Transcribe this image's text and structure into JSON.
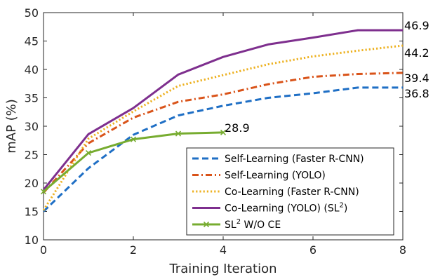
{
  "chart_data": {
    "type": "line",
    "title": "",
    "xlabel": "Training Iteration",
    "ylabel": "mAP (%)",
    "xlim": [
      0,
      8
    ],
    "ylim": [
      10,
      50
    ],
    "xticks": [
      0,
      2,
      4,
      6,
      8
    ],
    "yticks": [
      10,
      15,
      20,
      25,
      30,
      35,
      40,
      45,
      50
    ],
    "grid": false,
    "legend_position": "bottom-right",
    "series": [
      {
        "name": "Self-Learning (Faster R-CNN)",
        "name_sup": "",
        "color": "#1f6fc5",
        "style": "dashed",
        "marker": "none",
        "x": [
          0,
          1,
          2,
          3,
          4,
          5,
          6,
          7,
          8
        ],
        "y": [
          15.0,
          22.6,
          28.5,
          31.9,
          33.6,
          35.0,
          35.8,
          36.8,
          36.8
        ],
        "end_label": "36.8"
      },
      {
        "name": "Self-Learning (YOLO)",
        "name_sup": "",
        "color": "#d95319",
        "style": "dashdot",
        "marker": "none",
        "x": [
          0,
          1,
          2,
          3,
          4,
          5,
          6,
          7,
          8
        ],
        "y": [
          18.3,
          27.0,
          31.5,
          34.3,
          35.6,
          37.4,
          38.7,
          39.2,
          39.4
        ],
        "end_label": "39.4"
      },
      {
        "name": "Co-Learning (Faster R-CNN)",
        "name_sup": "",
        "color": "#edb120",
        "style": "dotted",
        "marker": "none",
        "x": [
          0,
          1,
          2,
          3,
          4,
          5,
          6,
          7,
          8
        ],
        "y": [
          15.2,
          27.8,
          32.6,
          37.1,
          39.0,
          40.9,
          42.3,
          43.3,
          44.2
        ],
        "end_label": "44.2"
      },
      {
        "name": "Co-Learning (YOLO) (SL",
        "name_sup": "2",
        "name_suffix": ")",
        "color": "#7e2f8e",
        "style": "solid",
        "marker": "none",
        "x": [
          0,
          1,
          2,
          3,
          4,
          5,
          6,
          7,
          8
        ],
        "y": [
          18.8,
          28.6,
          33.2,
          39.1,
          42.2,
          44.4,
          45.6,
          46.9,
          46.9
        ],
        "end_label": "46.9"
      },
      {
        "name": "SL",
        "name_sup": "2",
        "name_suffix": " W/O CE",
        "color": "#77ac30",
        "style": "solid",
        "marker": "x",
        "x": [
          0,
          1,
          2,
          3,
          4
        ],
        "y": [
          18.5,
          25.3,
          27.7,
          28.7,
          28.9
        ],
        "end_label": "28.9"
      }
    ]
  }
}
